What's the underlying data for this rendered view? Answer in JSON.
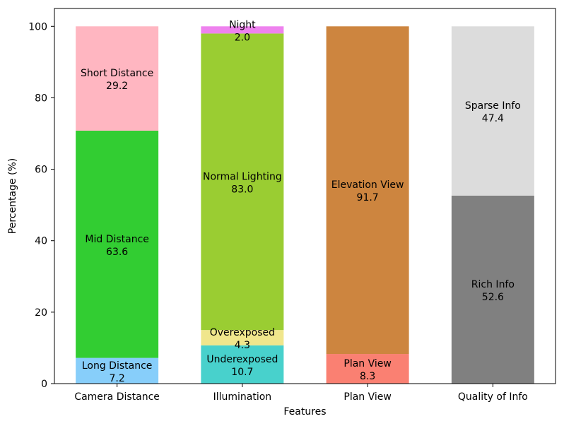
{
  "chart_data": {
    "type": "bar",
    "stacked": true,
    "title": "",
    "xlabel": "Features",
    "ylabel": "Percentage (%)",
    "ylim": [
      0,
      105
    ],
    "yticks": [
      0,
      20,
      40,
      60,
      80,
      100
    ],
    "grid": false,
    "legend": "none",
    "categories": [
      "Camera Distance",
      "Illumination",
      "Plan View",
      "Quality of Info"
    ],
    "bars": [
      {
        "category": "Camera Distance",
        "segments": [
          {
            "name": "Long Distance",
            "value": 7.2,
            "label": "7.2",
            "color": "#87cefa"
          },
          {
            "name": "Mid Distance",
            "value": 63.6,
            "label": "63.6",
            "color": "#32cd32"
          },
          {
            "name": "Short Distance",
            "value": 29.2,
            "label": "29.2",
            "color": "#ffb6c1"
          }
        ]
      },
      {
        "category": "Illumination",
        "segments": [
          {
            "name": "Underexposed",
            "value": 10.7,
            "label": "10.7",
            "color": "#48d1cc"
          },
          {
            "name": "Overexposed",
            "value": 4.3,
            "label": "4.3",
            "color": "#f0e68c"
          },
          {
            "name": "Normal Lighting",
            "value": 83.0,
            "label": "83.0",
            "color": "#9acd32"
          },
          {
            "name": "Night",
            "value": 2.0,
            "label": "2.0",
            "color": "#ee82ee"
          }
        ]
      },
      {
        "category": "Plan View",
        "segments": [
          {
            "name": "Plan View",
            "value": 8.3,
            "label": "8.3",
            "color": "#fa8072"
          },
          {
            "name": "Elevation View",
            "value": 91.7,
            "label": "91.7",
            "color": "#cd853f"
          }
        ]
      },
      {
        "category": "Quality of Info",
        "segments": [
          {
            "name": "Rich Info",
            "value": 52.6,
            "label": "52.6",
            "color": "#808080"
          },
          {
            "name": "Sparse Info",
            "value": 47.4,
            "label": "47.4",
            "color": "#dcdcdc"
          }
        ]
      }
    ]
  }
}
